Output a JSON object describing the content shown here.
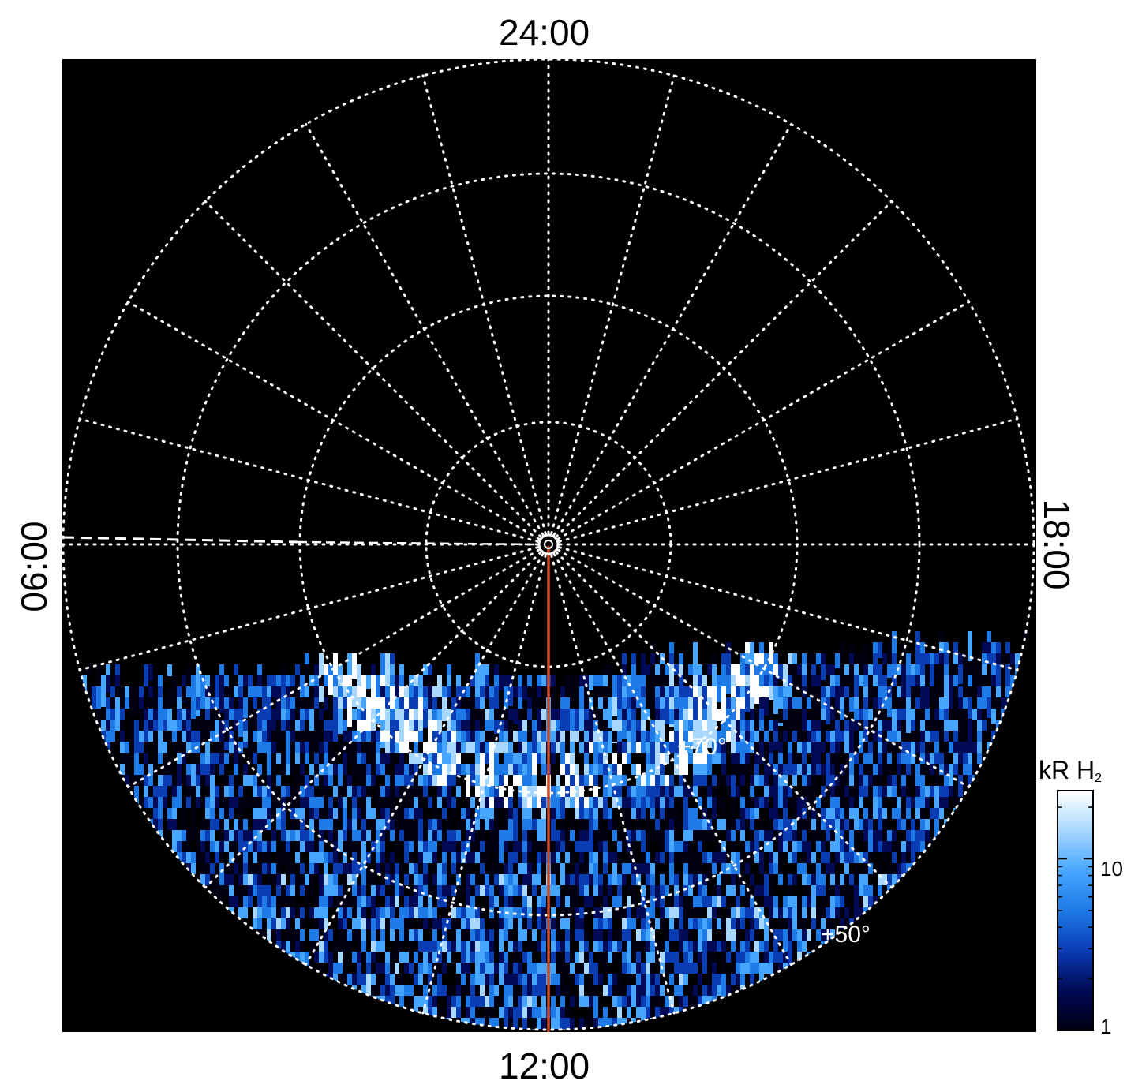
{
  "figure": {
    "local_time_labels": {
      "top": "24:00",
      "bottom": "12:00",
      "left": "06:00",
      "right": "18:00"
    },
    "latitude_labels": [
      {
        "text": "+70°",
        "latitude_deg": 70
      },
      {
        "text": "+50°",
        "latitude_deg": 50
      }
    ],
    "colorbar": {
      "title_main": "kR H",
      "title_sub": "2",
      "scale": "log",
      "range": [
        1,
        25
      ],
      "tick_labels": [
        {
          "text": "10",
          "value": 10
        },
        {
          "text": "1",
          "value": 1
        }
      ],
      "colors": [
        "#000010",
        "#000a55",
        "#0a3cb4",
        "#1e7ae6",
        "#46a6ff",
        "#a8d8ff",
        "#ffffff"
      ]
    },
    "meridian_line_color": "#d2461e",
    "grid_color": "#ffffff",
    "background_color": "#000000"
  }
}
